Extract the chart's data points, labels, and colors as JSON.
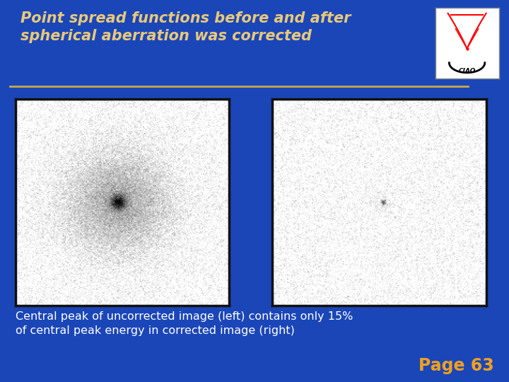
{
  "bg_color": "#1a46b8",
  "title_text": "Point spread functions before and after\nspherical aberration was corrected",
  "title_color": "#e8c87a",
  "title_fontsize": 15,
  "title_fontstyle": "italic",
  "title_fontweight": "bold",
  "separator_color": "#c8a84b",
  "caption_text": "Central peak of uncorrected image (left) contains only 15%\nof central peak energy in corrected image (right)",
  "caption_color": "#ffffff",
  "caption_fontsize": 11.5,
  "page_text": "Page 63",
  "page_color": "#f0a020",
  "page_fontsize": 17,
  "page_fontweight": "bold",
  "noise_level": 0.13,
  "box_border_color": "#111111",
  "outer_bg": "#1a46b8"
}
